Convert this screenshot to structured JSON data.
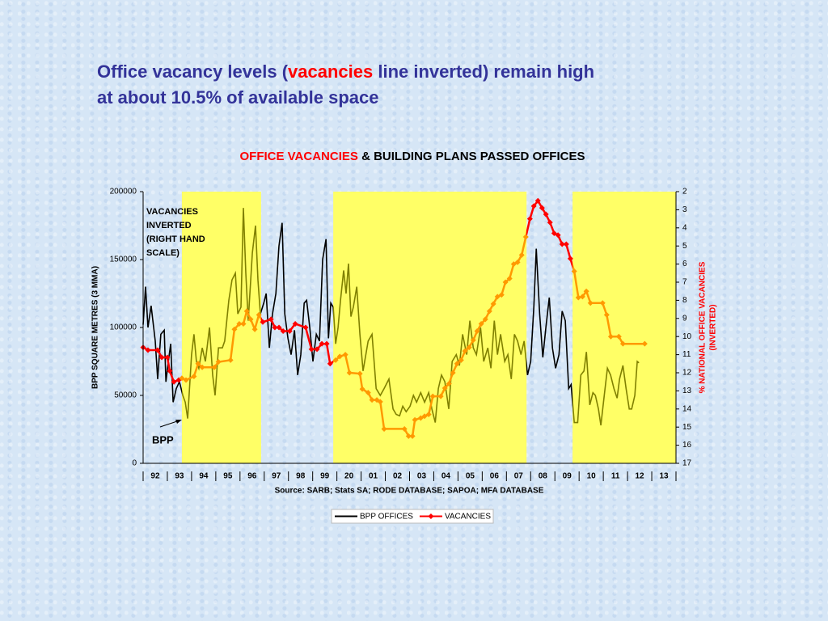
{
  "slide_heading": {
    "line1": [
      "Office vacancy levels (",
      "vacancies",
      " line inverted) remain high"
    ],
    "line2": "at about 10.5% of available space"
  },
  "chart_data": {
    "type": "line",
    "title": [
      "OFFICE VACANCIES",
      " & BUILDING PLANS PASSED OFFICES"
    ],
    "y_label": "BPP SQUARE METRES (3 MMA)",
    "y2_label": [
      "% NATIONAL OFFICE VACANCIES",
      "(INVERTED)"
    ],
    "source": "Source:  SARB; Stats SA;  RODE DATABASE;  SAPOA;  MFA DATABASE",
    "annotations": [
      {
        "lines": [
          "VACANCIES",
          "INVERTED",
          "(RIGHT HAND",
          "SCALE)"
        ]
      },
      {
        "lines": [
          "BPP"
        ]
      }
    ],
    "xlim": [
      1992,
      2014
    ],
    "xticks": [
      {
        "value": 1992.5,
        "label": "92"
      },
      {
        "value": 1993.5,
        "label": "93"
      },
      {
        "value": 1994.5,
        "label": "94"
      },
      {
        "value": 1995.5,
        "label": "95"
      },
      {
        "value": 1996.5,
        "label": "96"
      },
      {
        "value": 1997.5,
        "label": "97"
      },
      {
        "value": 1998.5,
        "label": "98"
      },
      {
        "value": 1999.5,
        "label": "99"
      },
      {
        "value": 2000.5,
        "label": "20"
      },
      {
        "value": 2001.5,
        "label": "01"
      },
      {
        "value": 2002.5,
        "label": "02"
      },
      {
        "value": 2003.5,
        "label": "03"
      },
      {
        "value": 2004.5,
        "label": "04"
      },
      {
        "value": 2005.5,
        "label": "05"
      },
      {
        "value": 2006.5,
        "label": "06"
      },
      {
        "value": 2007.5,
        "label": "07"
      },
      {
        "value": 2008.5,
        "label": "08"
      },
      {
        "value": 2009.5,
        "label": "09"
      },
      {
        "value": 2010.5,
        "label": "10"
      },
      {
        "value": 2011.5,
        "label": "11"
      },
      {
        "value": 2012.5,
        "label": "12"
      },
      {
        "value": 2013.5,
        "label": "13"
      }
    ],
    "ylim": [
      0,
      200000
    ],
    "yticks": [
      0,
      50000,
      100000,
      150000,
      200000
    ],
    "y2lim": [
      17,
      2
    ],
    "y2ticks": [
      2,
      3,
      4,
      5,
      6,
      7,
      8,
      9,
      10,
      11,
      12,
      13,
      14,
      15,
      16,
      17
    ],
    "shaded_ranges": [
      [
        1993.6,
        1996.87
      ],
      [
        1999.85,
        2007.83
      ],
      [
        2009.73,
        2014
      ]
    ],
    "shaded_color": "#ffff66",
    "legend": "bottom",
    "series": [
      {
        "name": "BPP OFFICES",
        "color": "#000000",
        "shaded_line_color": "#808000",
        "x": [
          1992.0,
          1992.1,
          1992.2,
          1992.33,
          1992.5,
          1992.6,
          1992.73,
          1992.87,
          1992.94,
          1993.04,
          1993.14,
          1993.24,
          1993.37,
          1993.5,
          1993.64,
          1993.74,
          1993.84,
          1994.0,
          1994.1,
          1994.2,
          1994.3,
          1994.44,
          1994.57,
          1994.74,
          1994.87,
          1994.97,
          1995.11,
          1995.27,
          1995.37,
          1995.54,
          1995.67,
          1995.81,
          1995.91,
          1996.04,
          1996.14,
          1996.24,
          1996.34,
          1996.51,
          1996.64,
          1996.74,
          1996.84,
          1996.98,
          1997.08,
          1997.21,
          1997.34,
          1997.48,
          1997.61,
          1997.74,
          1997.85,
          1997.98,
          1998.11,
          1998.25,
          1998.38,
          1998.51,
          1998.65,
          1998.75,
          1998.88,
          1999.01,
          1999.15,
          1999.28,
          1999.41,
          1999.55,
          1999.65,
          1999.75,
          1999.85,
          1999.95,
          2000.05,
          2000.15,
          2000.28,
          2000.38,
          2000.48,
          2000.58,
          2000.68,
          2000.82,
          2000.95,
          2001.08,
          2001.29,
          2001.45,
          2001.62,
          2001.79,
          2001.95,
          2002.15,
          2002.32,
          2002.45,
          2002.59,
          2002.72,
          2002.86,
          2003.02,
          2003.16,
          2003.29,
          2003.46,
          2003.62,
          2003.79,
          2003.92,
          2004.06,
          2004.19,
          2004.32,
          2004.46,
          2004.62,
          2004.76,
          2004.93,
          2005.06,
          2005.19,
          2005.36,
          2005.49,
          2005.63,
          2005.76,
          2005.93,
          2006.06,
          2006.23,
          2006.36,
          2006.5,
          2006.63,
          2006.76,
          2006.93,
          2007.06,
          2007.2,
          2007.33,
          2007.46,
          2007.6,
          2007.73,
          2007.87,
          2008.0,
          2008.13,
          2008.23,
          2008.37,
          2008.5,
          2008.63,
          2008.77,
          2008.9,
          2009.03,
          2009.17,
          2009.3,
          2009.43,
          2009.57,
          2009.67,
          2009.8,
          2009.94,
          2010.07,
          2010.2,
          2010.3,
          2010.44,
          2010.57,
          2010.67,
          2010.8,
          2010.9,
          2011.04,
          2011.17,
          2011.3,
          2011.44,
          2011.57,
          2011.67,
          2011.81,
          2011.94,
          2012.07,
          2012.17,
          2012.3,
          2012.4,
          2012.47
        ],
        "values": [
          102000,
          130000,
          100000,
          116000,
          90000,
          62000,
          95000,
          98000,
          60000,
          75000,
          88000,
          45000,
          55000,
          60000,
          50000,
          45000,
          33000,
          80000,
          95000,
          75000,
          70000,
          85000,
          75000,
          100000,
          65000,
          50000,
          85000,
          85000,
          90000,
          120000,
          135000,
          140000,
          110000,
          115000,
          188000,
          140000,
          105000,
          155000,
          175000,
          135000,
          110000,
          118000,
          125000,
          85000,
          110000,
          125000,
          160000,
          177000,
          110000,
          92000,
          80000,
          98000,
          65000,
          80000,
          118000,
          120000,
          100000,
          75000,
          95000,
          90000,
          150000,
          165000,
          92000,
          118000,
          115000,
          88000,
          100000,
          120000,
          142000,
          125000,
          147000,
          108000,
          115000,
          130000,
          95000,
          68000,
          90000,
          95000,
          55000,
          50000,
          55000,
          62000,
          40000,
          36000,
          35000,
          42000,
          38000,
          42000,
          50000,
          45000,
          52000,
          45000,
          52000,
          40000,
          30000,
          55000,
          65000,
          60000,
          40000,
          75000,
          80000,
          72000,
          95000,
          80000,
          105000,
          85000,
          80000,
          100000,
          75000,
          85000,
          70000,
          105000,
          80000,
          95000,
          75000,
          80000,
          62000,
          95000,
          90000,
          80000,
          90000,
          65000,
          75000,
          115000,
          158000,
          110000,
          78000,
          100000,
          122000,
          85000,
          70000,
          80000,
          112000,
          105000,
          55000,
          58000,
          30000,
          30000,
          65000,
          68000,
          82000,
          43000,
          52000,
          50000,
          40000,
          28000,
          50000,
          70000,
          65000,
          55000,
          48000,
          62000,
          72000,
          55000,
          40000,
          40000,
          50000,
          75000,
          74000
        ]
      },
      {
        "name": "VACANCIES",
        "color": "#ff0000",
        "shaded_line_color": "#ff9900",
        "axis": "y2",
        "x": [
          1992.0,
          1992.2,
          1992.6,
          1992.77,
          1993.0,
          1993.1,
          1993.27,
          1993.47,
          1993.6,
          1993.77,
          1994.1,
          1994.27,
          1994.44,
          1994.94,
          1995.11,
          1995.61,
          1995.77,
          1995.97,
          1996.14,
          1996.28,
          1996.44,
          1996.61,
          1996.78,
          1996.94,
          1997.28,
          1997.44,
          1997.61,
          1997.78,
          1998.05,
          1998.28,
          1998.71,
          1998.95,
          1999.18,
          1999.38,
          1999.58,
          1999.72,
          1999.95,
          2000.12,
          2000.35,
          2000.52,
          2000.95,
          2001.05,
          2001.29,
          2001.45,
          2001.65,
          2001.79,
          2001.95,
          2002.79,
          2002.96,
          2003.12,
          2003.22,
          2003.46,
          2003.62,
          2003.79,
          2003.96,
          2004.29,
          2004.46,
          2004.63,
          2004.79,
          2004.96,
          2005.13,
          2005.29,
          2005.46,
          2005.63,
          2005.79,
          2005.96,
          2006.13,
          2006.3,
          2006.46,
          2006.63,
          2006.8,
          2006.96,
          2007.13,
          2007.3,
          2007.46,
          2007.63,
          2007.8,
          2007.97,
          2008.13,
          2008.3,
          2008.47,
          2008.63,
          2008.8,
          2008.97,
          2009.13,
          2009.3,
          2009.47,
          2009.64,
          2009.8,
          2009.97,
          2010.14,
          2010.3,
          2010.47,
          2010.97,
          2011.14,
          2011.31,
          2011.64,
          2011.81,
          2012.71
        ],
        "values": [
          10.6,
          10.75,
          10.75,
          11.15,
          11.15,
          11.9,
          12.5,
          12.4,
          12.3,
          12.4,
          12.2,
          11.5,
          11.7,
          11.7,
          11.4,
          11.3,
          9.6,
          9.3,
          9.3,
          8.6,
          9.05,
          9.6,
          8.8,
          9.2,
          9.05,
          9.5,
          9.5,
          9.7,
          9.7,
          9.3,
          9.5,
          10.7,
          10.7,
          10.4,
          10.4,
          11.5,
          11.3,
          11.1,
          11.0,
          12.0,
          12.05,
          12.9,
          13.1,
          13.5,
          13.5,
          13.6,
          15.1,
          15.1,
          15.5,
          15.5,
          14.6,
          14.5,
          14.4,
          14.3,
          13.3,
          13.3,
          12.85,
          12.6,
          12.0,
          11.5,
          11.3,
          10.8,
          10.6,
          10.2,
          9.7,
          9.3,
          9.05,
          8.6,
          8.2,
          7.8,
          7.7,
          7.0,
          6.8,
          6.0,
          5.9,
          5.5,
          4.5,
          3.5,
          2.8,
          2.5,
          2.9,
          3.25,
          3.7,
          4.3,
          4.4,
          4.9,
          4.9,
          5.7,
          6.4,
          7.85,
          7.8,
          7.5,
          8.15,
          8.15,
          8.8,
          10.0,
          10.0,
          10.4,
          10.4
        ]
      }
    ]
  }
}
